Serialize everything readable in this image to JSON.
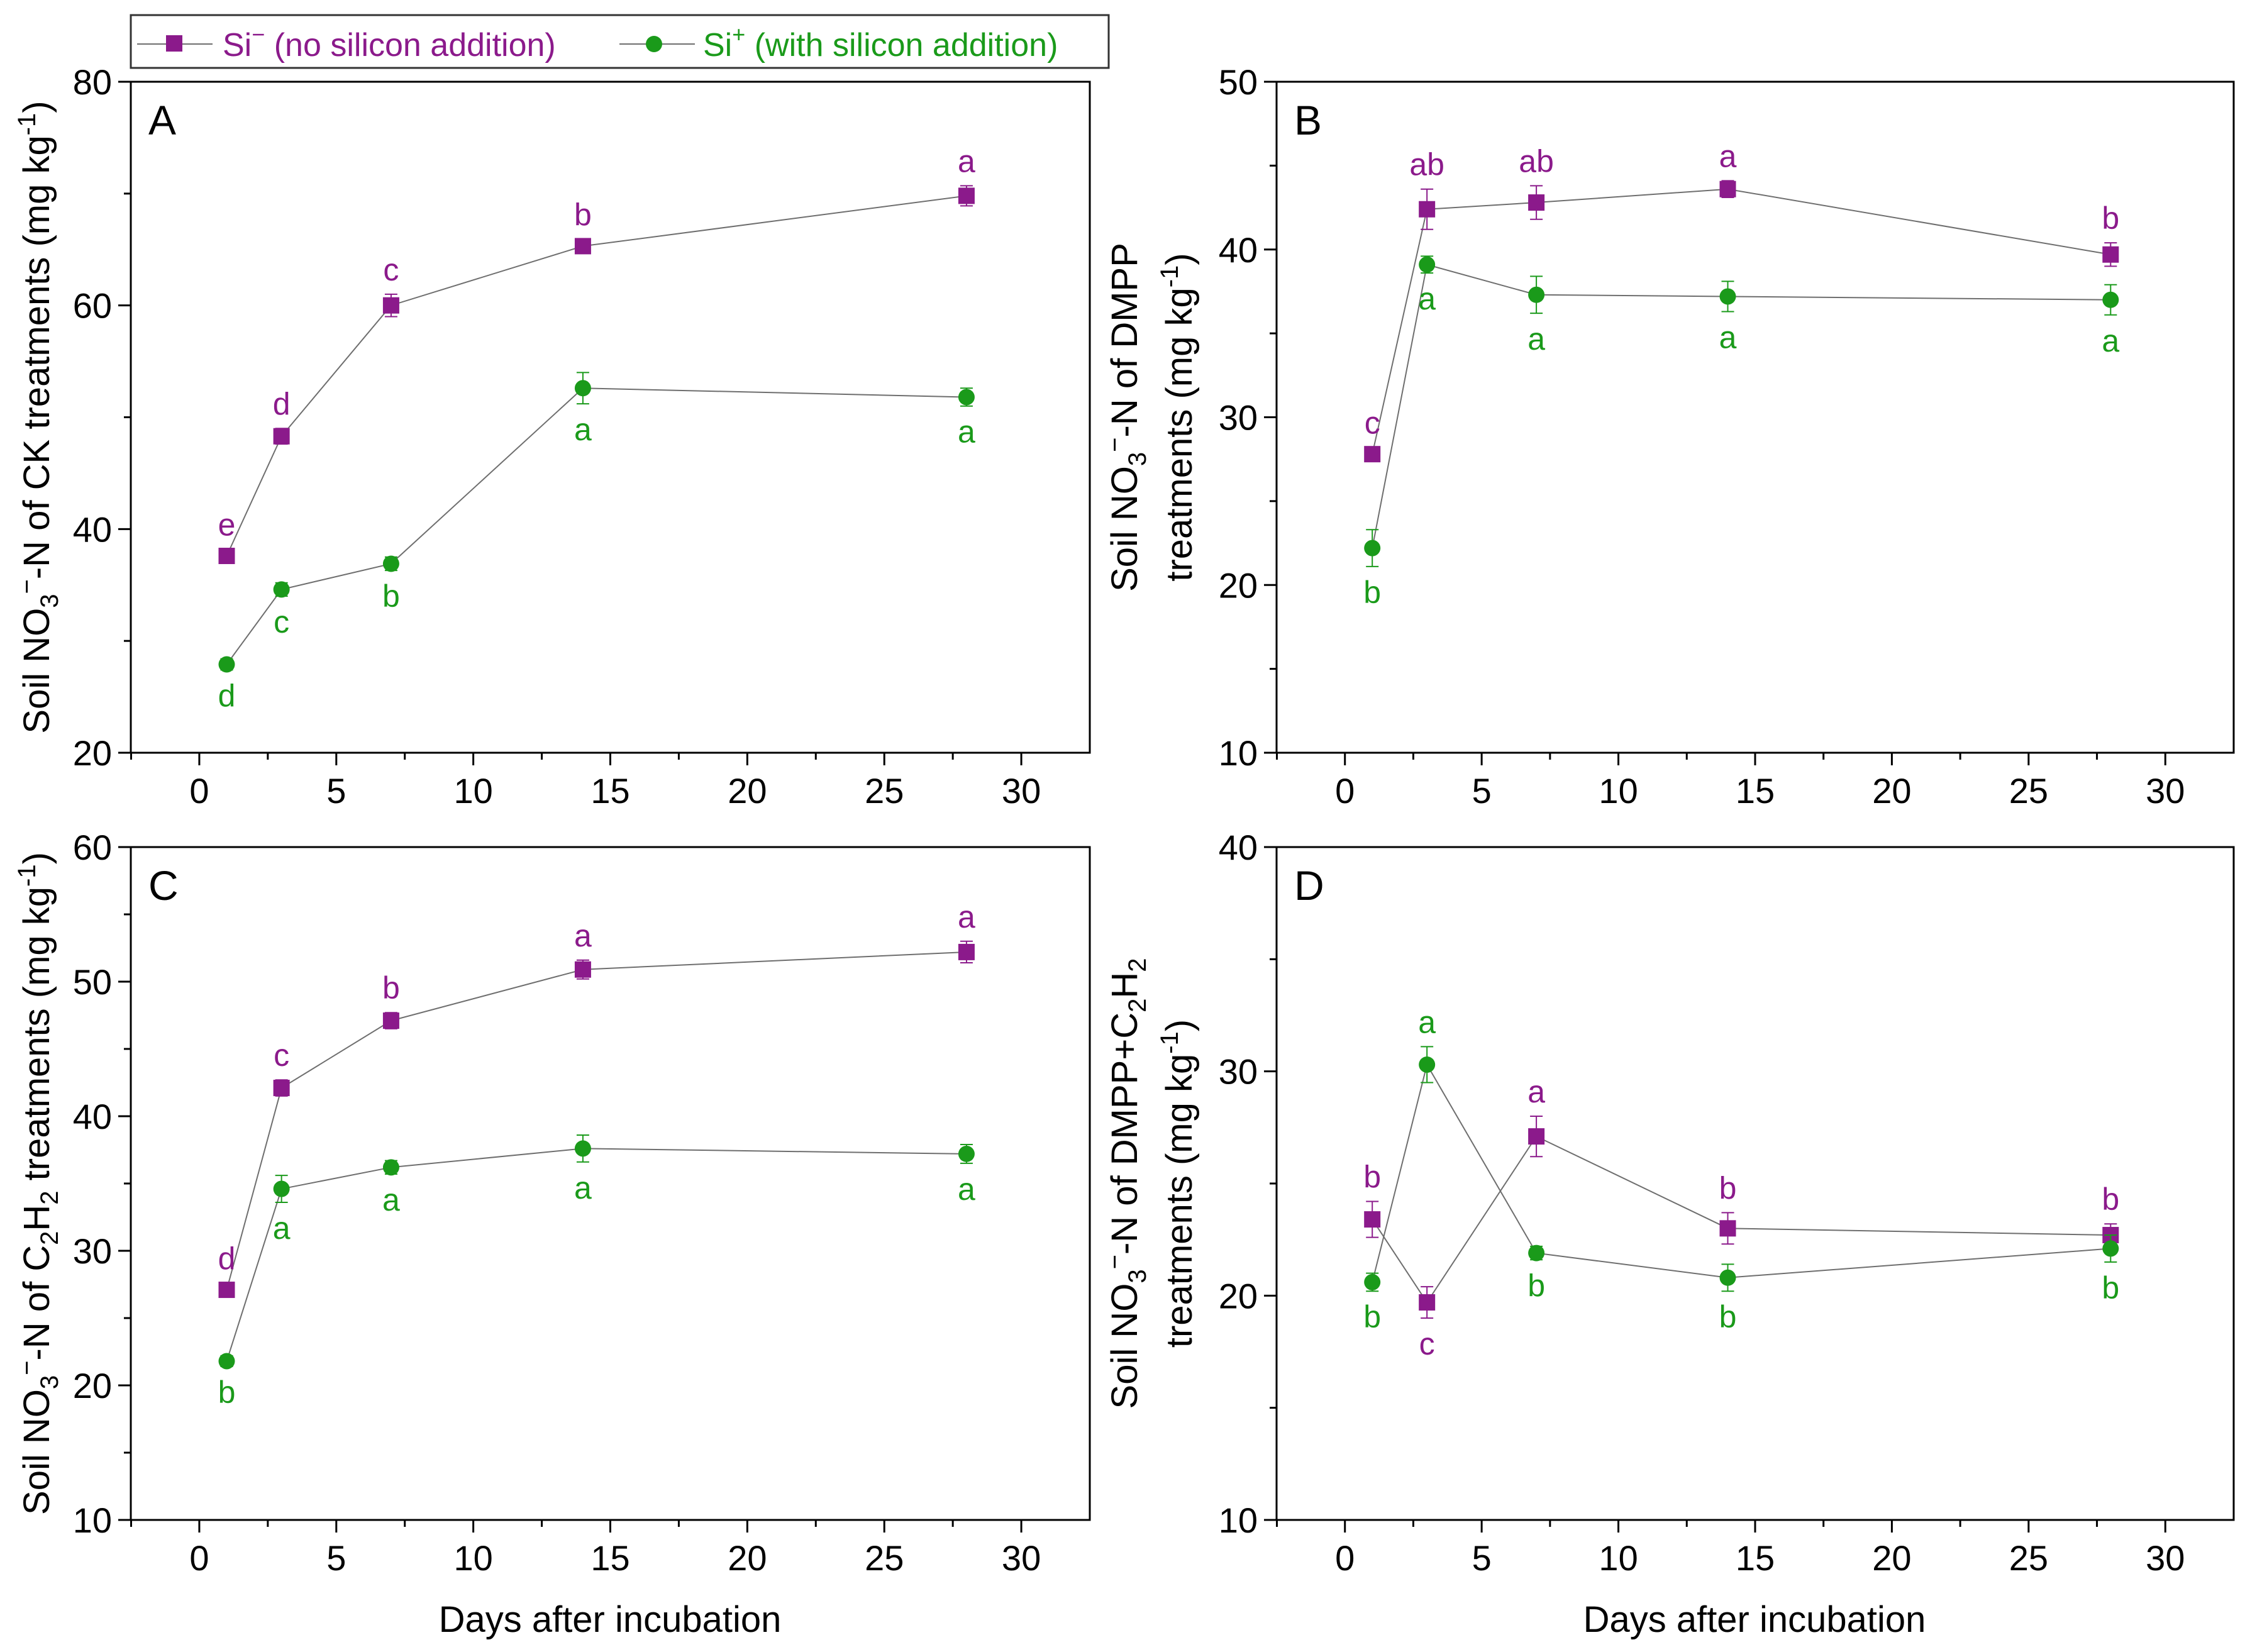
{
  "colors": {
    "si_minus": "#8B1A8B",
    "si_plus": "#1A9A1A",
    "line": "#6e6e6e",
    "axis": "#000000"
  },
  "legend": {
    "si_minus": {
      "prefix": "Si",
      "sup": "−",
      "label": " (no silicon addition)"
    },
    "si_plus": {
      "prefix": "Si",
      "sup": "+",
      "label": " (with silicon addition)"
    }
  },
  "chart_data": [
    {
      "type": "line",
      "panel": "A",
      "xlabel": "",
      "ylabel": {
        "l1_pre": "Soil NO",
        "l1_sub": "3",
        "l1_sup": "−",
        "l1_post": "-N of CK treatments (mg kg",
        "l1_sup2": "-1",
        "l1_end": ")",
        "l2": ""
      },
      "xlim": [
        -2.5,
        32.5
      ],
      "ylim": [
        20,
        80
      ],
      "xticks": [
        "0",
        "5",
        "10",
        "15",
        "20",
        "25",
        "30"
      ],
      "yticks": [
        "20",
        "40",
        "60",
        "80"
      ],
      "x": [
        1,
        3,
        7,
        14,
        28
      ],
      "series": [
        {
          "name": "Si− (no silicon addition)",
          "key": "si_minus",
          "values": [
            37.6,
            48.3,
            60.0,
            65.3,
            69.8
          ],
          "err": [
            0.6,
            0.7,
            1.0,
            0.6,
            0.9
          ],
          "labels": [
            "e",
            "d",
            "c",
            "b",
            "a"
          ]
        },
        {
          "name": "Si+ (with silicon addition)",
          "key": "si_plus",
          "values": [
            27.9,
            34.6,
            36.9,
            52.6,
            51.8
          ],
          "err": [
            0.5,
            0.6,
            0.6,
            1.4,
            0.8
          ],
          "labels": [
            "d",
            "c",
            "b",
            "a",
            "a"
          ]
        }
      ]
    },
    {
      "type": "line",
      "panel": "B",
      "xlabel": "",
      "ylabel": {
        "l1_pre": "Soil NO",
        "l1_sub": "3",
        "l1_sup": "−",
        "l1_post": "-N of DMPP",
        "l1_sup2": "",
        "l1_end": "",
        "l2": "treatments (mg kg",
        "l2_sup": "-1",
        "l2_end": ")"
      },
      "xlim": [
        -2.5,
        32.5
      ],
      "ylim": [
        10,
        50
      ],
      "xticks": [
        "0",
        "5",
        "10",
        "15",
        "20",
        "25",
        "30"
      ],
      "yticks": [
        "10",
        "20",
        "30",
        "40",
        "50"
      ],
      "x": [
        1,
        3,
        7,
        14,
        28
      ],
      "series": [
        {
          "name": "Si− (no silicon addition)",
          "key": "si_minus",
          "values": [
            27.8,
            42.4,
            42.8,
            43.6,
            39.7
          ],
          "err": [
            0.4,
            1.2,
            1.0,
            0.5,
            0.7
          ],
          "labels": [
            "c",
            "ab",
            "ab",
            "a",
            "b"
          ]
        },
        {
          "name": "Si+ (with silicon addition)",
          "key": "si_plus",
          "values": [
            22.2,
            39.1,
            37.3,
            37.2,
            37.0
          ],
          "err": [
            1.1,
            0.5,
            1.1,
            0.9,
            0.9
          ],
          "labels": [
            "b",
            "a",
            "a",
            "a",
            "a"
          ]
        }
      ]
    },
    {
      "type": "line",
      "panel": "C",
      "xlabel": "Days after incubation",
      "ylabel": {
        "l1_pre": "Soil NO",
        "l1_sub": "3",
        "l1_sup": "−",
        "l1_post": "-N of C",
        "l1_sub2": "2",
        "l1_mid": "H",
        "l1_sub3": "2",
        "l1_post2": " treatments (mg kg",
        "l1_sup2": "-1",
        "l1_end": ")",
        "l2": ""
      },
      "xlim": [
        -2.5,
        32.5
      ],
      "ylim": [
        10,
        60
      ],
      "xticks": [
        "0",
        "5",
        "10",
        "15",
        "20",
        "25",
        "30"
      ],
      "yticks": [
        "10",
        "20",
        "30",
        "40",
        "50",
        "60"
      ],
      "x": [
        1,
        3,
        7,
        14,
        28
      ],
      "series": [
        {
          "name": "Si− (no silicon addition)",
          "key": "si_minus",
          "values": [
            27.1,
            42.1,
            47.1,
            50.9,
            52.2
          ],
          "err": [
            0.5,
            0.6,
            0.6,
            0.7,
            0.8
          ],
          "labels": [
            "d",
            "c",
            "b",
            "a",
            "a"
          ]
        },
        {
          "name": "Si+ (with silicon addition)",
          "key": "si_plus",
          "values": [
            21.8,
            34.6,
            36.2,
            37.6,
            37.2
          ],
          "err": [
            0.4,
            1.0,
            0.5,
            1.0,
            0.7
          ],
          "labels": [
            "b",
            "a",
            "a",
            "a",
            "a"
          ]
        }
      ]
    },
    {
      "type": "line",
      "panel": "D",
      "xlabel": "Days after incubation",
      "ylabel": {
        "l1_pre": "Soil NO",
        "l1_sub": "3",
        "l1_sup": "−",
        "l1_post": "-N of DMPP+C",
        "l1_sub2": "2",
        "l1_mid": "H",
        "l1_sub3": "2",
        "l1_post2": "",
        "l1_sup2": "",
        "l1_end": "",
        "l2": "treatments (mg kg",
        "l2_sup": "-1",
        "l2_end": ")"
      },
      "xlim": [
        -2.5,
        32.5
      ],
      "ylim": [
        10,
        40
      ],
      "xticks": [
        "0",
        "5",
        "10",
        "15",
        "20",
        "25",
        "30"
      ],
      "yticks": [
        "10",
        "20",
        "30",
        "40"
      ],
      "x": [
        1,
        3,
        7,
        14,
        28
      ],
      "series": [
        {
          "name": "Si− (no silicon addition)",
          "key": "si_minus",
          "values": [
            23.4,
            19.7,
            27.1,
            23.0,
            22.7
          ],
          "err": [
            0.8,
            0.7,
            0.9,
            0.7,
            0.5
          ],
          "labels": [
            "b",
            "c",
            "a",
            "b",
            "b"
          ]
        },
        {
          "name": "Si+ (with silicon addition)",
          "key": "si_plus",
          "values": [
            20.6,
            30.3,
            21.9,
            20.8,
            22.1
          ],
          "err": [
            0.4,
            0.8,
            0.3,
            0.6,
            0.6
          ],
          "labels": [
            "b",
            "a",
            "b",
            "b",
            "b"
          ]
        }
      ]
    }
  ]
}
